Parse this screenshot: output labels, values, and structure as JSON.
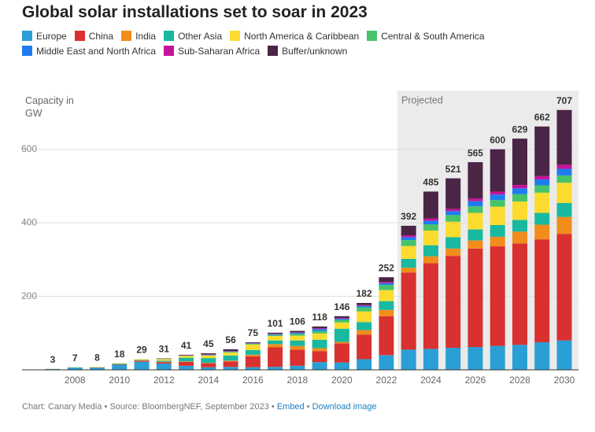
{
  "chart_data": {
    "type": "stacked_bar",
    "title": "Global solar installations set to soar in 2023",
    "y_label": "Capacity in GW",
    "annotation": "Projected",
    "categories": [
      null,
      "2008",
      null,
      "2010",
      null,
      "2012",
      null,
      "2014",
      null,
      "2016",
      null,
      "2018",
      null,
      "2020",
      null,
      "2022",
      null,
      "2024",
      null,
      "2026",
      null,
      "2028",
      null,
      "2030"
    ],
    "totals": [
      3,
      7,
      8,
      18,
      29,
      31,
      41,
      45,
      56,
      75,
      101,
      106,
      118,
      146,
      182,
      252,
      392,
      485,
      521,
      565,
      600,
      629,
      662,
      707
    ],
    "series": [
      {
        "name": "Europe",
        "color": "#2a9fd6",
        "values": [
          2.5,
          5.5,
          6,
          14,
          22,
          17,
          11,
          7,
          8,
          7,
          8,
          11,
          21,
          20,
          29,
          40,
          55,
          57,
          60,
          62,
          65,
          68,
          75,
          80
        ]
      },
      {
        "name": "China",
        "color": "#d8312f",
        "values": [
          0,
          0,
          0.5,
          1,
          3,
          4,
          11,
          11,
          15,
          30,
          53,
          44,
          30,
          52,
          67,
          106,
          210,
          233,
          250,
          268,
          271,
          276,
          280,
          290
        ]
      },
      {
        "name": "India",
        "color": "#f28c1b",
        "values": [
          0,
          0,
          0,
          0.5,
          0.5,
          1,
          1,
          1,
          2,
          4,
          9,
          10,
          8,
          4,
          12,
          17,
          13,
          19,
          20,
          22,
          26,
          32,
          40,
          46
        ]
      },
      {
        "name": "Other Asia",
        "color": "#19b8a0",
        "values": [
          0,
          1,
          0.5,
          1.5,
          1.5,
          3,
          10,
          13,
          14,
          13,
          10,
          15,
          23,
          36,
          22,
          24,
          24,
          30,
          31,
          30,
          32,
          32,
          32,
          38
        ]
      },
      {
        "name": "North America & Caribbean",
        "color": "#fbdc2e",
        "values": [
          0.5,
          0.5,
          1,
          1,
          2,
          4,
          5,
          7,
          8,
          15,
          12,
          13,
          17,
          17,
          29,
          30,
          35,
          40,
          42,
          45,
          50,
          50,
          55,
          55
        ]
      },
      {
        "name": "Central & South America",
        "color": "#45c46a",
        "values": [
          0,
          0,
          0,
          0,
          0,
          0.5,
          0.5,
          1,
          2,
          2,
          3,
          5,
          7,
          7,
          11,
          14,
          16,
          17,
          18,
          18,
          18,
          20,
          20,
          20
        ]
      },
      {
        "name": "Middle East and North Africa",
        "color": "#1f7cf0",
        "values": [
          0,
          0,
          0,
          0,
          0,
          0.5,
          0.5,
          1,
          1,
          1,
          2,
          3,
          5,
          3,
          4,
          5,
          8,
          10,
          11,
          14,
          15,
          16,
          16,
          18
        ]
      },
      {
        "name": "Sub-Saharan Africa",
        "color": "#c8129b",
        "values": [
          0,
          0,
          0,
          0,
          0,
          0,
          0.5,
          1,
          1,
          1,
          1,
          1,
          2,
          2,
          2,
          3,
          5,
          6,
          6,
          7,
          8,
          9,
          9,
          11
        ]
      },
      {
        "name": "Buffer/unknown",
        "color": "#4a2545",
        "values": [
          0,
          0,
          0,
          0,
          0,
          1,
          1.5,
          3,
          5,
          2,
          3,
          4,
          5,
          5,
          6,
          13,
          26,
          73,
          83,
          99,
          115,
          126,
          135,
          149
        ]
      }
    ],
    "ylim": [
      0,
      760
    ],
    "yticks": [
      200,
      400,
      600
    ],
    "grid": true,
    "source": "Chart: Canary Media • Source: BloombergNEF, September 2023 •",
    "links": [
      "Embed",
      "Download image"
    ],
    "link_separator": "•"
  }
}
